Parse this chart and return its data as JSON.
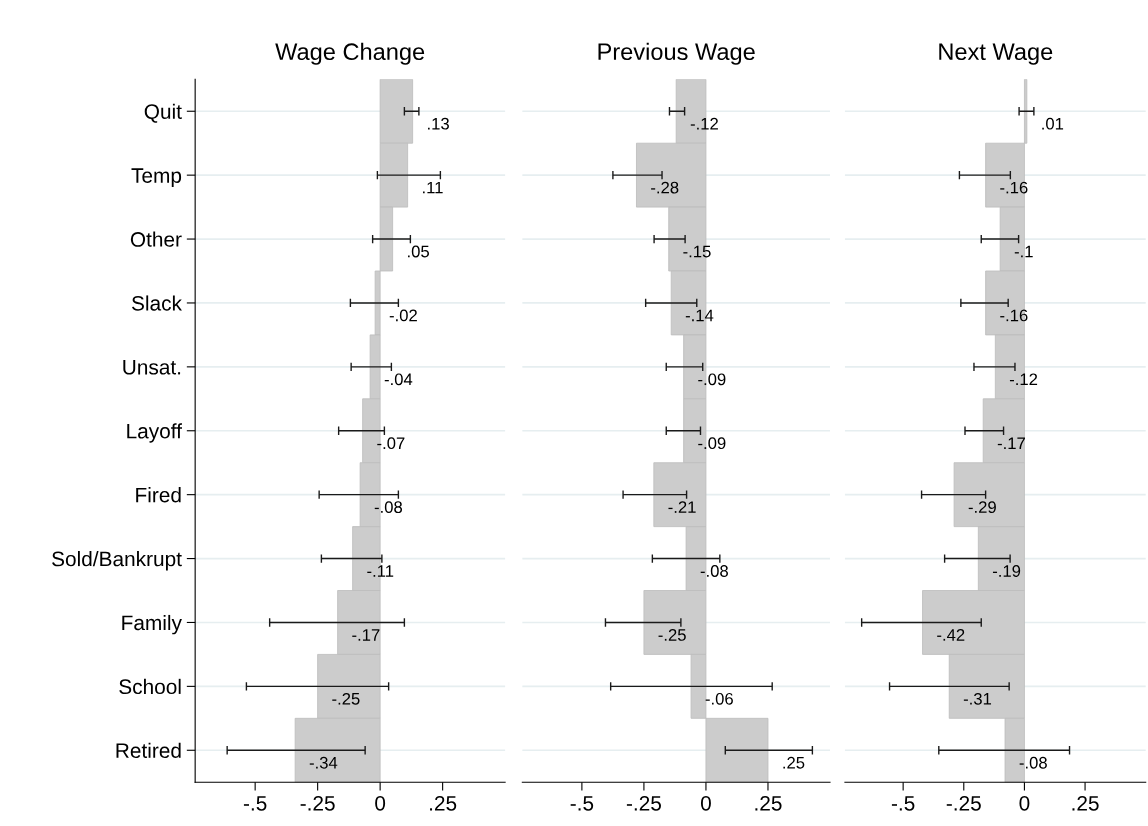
{
  "chart_data": [
    {
      "type": "bar",
      "orientation": "horizontal",
      "title": "Wage Change",
      "categories": [
        "Quit",
        "Temp",
        "Other",
        "Slack",
        "Unsat.",
        "Layoff",
        "Fired",
        "Sold/Bankrupt",
        "Family",
        "School",
        "Retired"
      ],
      "color": "#cccccc",
      "grid": "y",
      "xlim": [
        -0.74,
        0.5
      ],
      "xticks": [
        {
          "value": -0.5,
          "label": "-.5"
        },
        {
          "value": -0.25,
          "label": "-.25"
        },
        0,
        {
          "value": 0.25,
          "label": ".25"
        }
      ],
      "values": [
        0.13,
        0.11,
        0.05,
        -0.02,
        -0.04,
        -0.07,
        -0.08,
        -0.11,
        -0.17,
        -0.25,
        -0.34
      ],
      "value_labels": [
        ".13",
        ".11",
        ".05",
        "-.02",
        "-.04",
        "-.07",
        "-.08",
        "-.11",
        "-.17",
        "-.25",
        "-.34"
      ],
      "errors": [
        [
          0.097,
          0.155
        ],
        [
          -0.011,
          0.241
        ],
        [
          -0.03,
          0.121
        ],
        [
          -0.119,
          0.073
        ],
        [
          -0.116,
          0.045
        ],
        [
          -0.166,
          0.017
        ],
        [
          -0.244,
          0.073
        ],
        [
          -0.235,
          0.007
        ],
        [
          -0.442,
          0.097
        ],
        [
          -0.535,
          0.034
        ],
        [
          -0.612,
          -0.06
        ]
      ]
    },
    {
      "type": "bar",
      "orientation": "horizontal",
      "title": "Previous Wage",
      "categories": [
        null,
        null,
        null,
        null,
        null,
        null,
        null,
        null,
        null,
        null,
        null
      ],
      "tick_labels": "x",
      "color": "#cccccc",
      "grid": "y",
      "xlim": [
        -0.74,
        0.5
      ],
      "xticks": [
        {
          "value": -0.5,
          "label": "-.5"
        },
        {
          "value": -0.25,
          "label": "-.25"
        },
        0,
        {
          "value": 0.25,
          "label": ".25"
        }
      ],
      "values": [
        -0.12,
        -0.28,
        -0.15,
        -0.14,
        -0.09,
        -0.09,
        -0.21,
        -0.08,
        -0.25,
        -0.06,
        0.25
      ],
      "value_labels": [
        "-.12",
        "-.28",
        "-.15",
        "-.14",
        "-.09",
        "-.09",
        "-.21",
        "-.08",
        "-.25",
        "-.06",
        ".25"
      ],
      "errors": [
        [
          -0.147,
          -0.086
        ],
        [
          -0.375,
          -0.177
        ],
        [
          -0.209,
          -0.084
        ],
        [
          -0.243,
          -0.037
        ],
        [
          -0.16,
          -0.013
        ],
        [
          -0.16,
          -0.022
        ],
        [
          -0.334,
          -0.078
        ],
        [
          -0.216,
          0.056
        ],
        [
          -0.405,
          -0.101
        ],
        [
          -0.384,
          0.267
        ],
        [
          0.078,
          0.429
        ]
      ]
    },
    {
      "type": "bar",
      "orientation": "horizontal",
      "title": "Next Wage",
      "categories": [
        null,
        null,
        null,
        null,
        null,
        null,
        null,
        null,
        null,
        null,
        null
      ],
      "tick_labels": "x",
      "color": "#cccccc",
      "grid": "y",
      "xlim": [
        -0.74,
        0.5
      ],
      "xticks": [
        {
          "value": -0.5,
          "label": "-.5"
        },
        {
          "value": -0.25,
          "label": "-.25"
        },
        0,
        {
          "value": 0.25,
          "label": ".25"
        }
      ],
      "values": [
        0.01,
        -0.16,
        -0.1,
        -0.16,
        -0.12,
        -0.17,
        -0.29,
        -0.19,
        -0.42,
        -0.31,
        -0.08
      ],
      "value_labels": [
        ".01",
        "-.16",
        "-.1",
        "-.16",
        "-.12",
        "-.17",
        "-.29",
        "-.19",
        "-.42",
        "-.31",
        "-.08"
      ],
      "errors": [
        [
          -0.022,
          0.039
        ],
        [
          -0.268,
          -0.058
        ],
        [
          -0.178,
          -0.024
        ],
        [
          -0.262,
          -0.067
        ],
        [
          -0.208,
          -0.039
        ],
        [
          -0.245,
          -0.086
        ],
        [
          -0.424,
          -0.16
        ],
        [
          -0.329,
          -0.059
        ],
        [
          -0.671,
          -0.178
        ],
        [
          -0.556,
          -0.063
        ],
        [
          -0.353,
          0.186
        ]
      ]
    }
  ]
}
